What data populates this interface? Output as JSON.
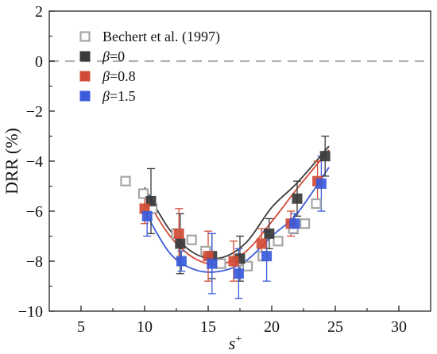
{
  "chart_data": {
    "type": "scatter",
    "xlabel": "s+",
    "ylabel": "DRR (%)",
    "xlim": [
      2.5,
      32.5
    ],
    "ylim": [
      -10,
      2
    ],
    "xticks": [
      5,
      10,
      15,
      20,
      25,
      30
    ],
    "yticks": [
      2,
      0,
      -2,
      -4,
      -6,
      -8,
      -10
    ],
    "xtick_labels": [
      "5",
      "10",
      "15",
      "20",
      "25",
      "30"
    ],
    "ytick_labels": [
      "2",
      "0",
      "−2",
      "−4",
      "−6",
      "−8",
      "−10"
    ],
    "reference_line": {
      "y": 0,
      "style": "dashed",
      "color": "#b3b3b3"
    },
    "legend_position": "top-left",
    "series": [
      {
        "name": "Bechert et al. (1997)",
        "marker": "open-square",
        "color": "#a6a6a6",
        "points": [
          {
            "x": 8.5,
            "y": -4.8
          },
          {
            "x": 9.9,
            "y": -5.3
          },
          {
            "x": 10.6,
            "y": -5.9
          },
          {
            "x": 12.5,
            "y": -6.9
          },
          {
            "x": 13.7,
            "y": -7.15
          },
          {
            "x": 14.8,
            "y": -7.6
          },
          {
            "x": 16.0,
            "y": -8.1
          },
          {
            "x": 17.3,
            "y": -8.0
          },
          {
            "x": 18.1,
            "y": -8.2
          },
          {
            "x": 19.3,
            "y": -7.8
          },
          {
            "x": 20.5,
            "y": -7.2
          },
          {
            "x": 21.7,
            "y": -6.7
          },
          {
            "x": 22.6,
            "y": -6.5
          },
          {
            "x": 23.5,
            "y": -5.7
          }
        ]
      },
      {
        "name": "β=0",
        "marker": "filled-square",
        "color": "#3a3a3a",
        "points": [
          {
            "x": 10.5,
            "y": -5.6,
            "err": 1.3
          },
          {
            "x": 12.8,
            "y": -7.3,
            "err": 1.2
          },
          {
            "x": 15.3,
            "y": -7.8,
            "err": 0.9
          },
          {
            "x": 17.5,
            "y": -7.9,
            "err": 0.9
          },
          {
            "x": 19.8,
            "y": -6.9,
            "err": 0.6
          },
          {
            "x": 22.0,
            "y": -5.5,
            "err": 0.7
          },
          {
            "x": 24.2,
            "y": -3.8,
            "err": 0.8
          }
        ],
        "fit": [
          {
            "x": 10.0,
            "y": -5.05
          },
          {
            "x": 12.0,
            "y": -6.77
          },
          {
            "x": 14.0,
            "y": -7.71
          },
          {
            "x": 16.0,
            "y": -7.87
          },
          {
            "x": 18.0,
            "y": -7.25
          },
          {
            "x": 20.0,
            "y": -5.85
          },
          {
            "x": 22.0,
            "y": -4.87
          },
          {
            "x": 24.5,
            "y": -3.4
          }
        ]
      },
      {
        "name": "β=0.8",
        "marker": "filled-square",
        "color": "#d24b36",
        "points": [
          {
            "x": 10.0,
            "y": -5.9,
            "err": 0.6
          },
          {
            "x": 12.7,
            "y": -6.9,
            "err": 1.0
          },
          {
            "x": 15.0,
            "y": -7.8,
            "err": 1.0
          },
          {
            "x": 17.0,
            "y": -8.0,
            "err": 0.8
          },
          {
            "x": 19.2,
            "y": -7.3,
            "err": 0.6
          },
          {
            "x": 21.5,
            "y": -6.5,
            "err": 0.5
          },
          {
            "x": 23.6,
            "y": -4.8,
            "err": 0.8
          }
        ],
        "fit": [
          {
            "x": 10.0,
            "y": -5.4
          },
          {
            "x": 12.0,
            "y": -7.0
          },
          {
            "x": 14.0,
            "y": -7.91
          },
          {
            "x": 16.0,
            "y": -8.12
          },
          {
            "x": 18.0,
            "y": -7.6
          },
          {
            "x": 20.0,
            "y": -6.42
          },
          {
            "x": 22.0,
            "y": -5.1
          },
          {
            "x": 24.5,
            "y": -3.55
          }
        ]
      },
      {
        "name": "β=1.5",
        "marker": "filled-square",
        "color": "#3b5bdb",
        "points": [
          {
            "x": 10.2,
            "y": -6.2,
            "err": 0.8
          },
          {
            "x": 12.9,
            "y": -8.0,
            "err": 0.4
          },
          {
            "x": 15.3,
            "y": -8.1,
            "err": 1.2
          },
          {
            "x": 17.4,
            "y": -8.5,
            "err": 1.0
          },
          {
            "x": 19.6,
            "y": -7.8,
            "err": 1.0
          },
          {
            "x": 21.8,
            "y": -6.5,
            "err": 0.4
          },
          {
            "x": 23.9,
            "y": -4.9,
            "err": 1.1
          }
        ],
        "fit": [
          {
            "x": 10.0,
            "y": -6.0
          },
          {
            "x": 12.0,
            "y": -7.69
          },
          {
            "x": 14.0,
            "y": -8.35
          },
          {
            "x": 16.0,
            "y": -8.4
          },
          {
            "x": 18.0,
            "y": -7.98
          },
          {
            "x": 20.0,
            "y": -7.0
          },
          {
            "x": 22.0,
            "y": -6.09
          },
          {
            "x": 24.5,
            "y": -4.25
          }
        ]
      }
    ]
  }
}
